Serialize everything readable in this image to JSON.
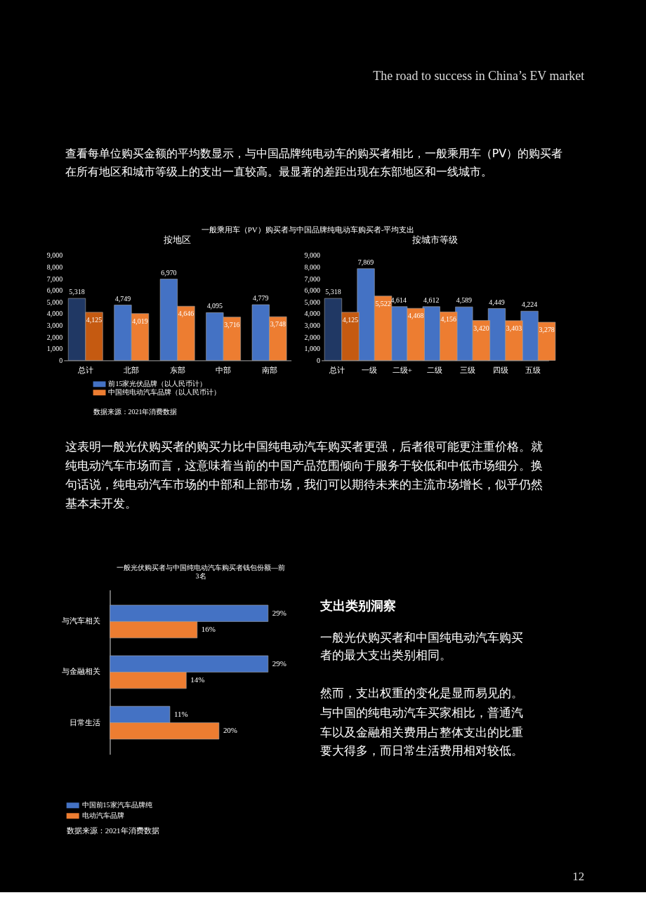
{
  "chart_data": [
    {
      "type": "bar",
      "title": "按地区",
      "categories": [
        "总计",
        "北部",
        "东部",
        "中部",
        "南部"
      ],
      "series": [
        {
          "name": "前15家光伏品牌（以人民币计）",
          "color": "#4472c4",
          "colors": [
            "#203864",
            "#4472c4",
            "#4472c4",
            "#4472c4",
            "#4472c4"
          ],
          "values": [
            5318,
            4749,
            6970,
            4095,
            4779
          ],
          "value_labels": [
            "5,318",
            "4,749",
            "6,970",
            "4,095",
            "4,779"
          ]
        },
        {
          "name": "中国纯电动汽车品牌（以人民币计）",
          "color": "#ed7d31",
          "colors": [
            "#c55a11",
            "#ed7d31",
            "#ed7d31",
            "#ed7d31",
            "#ed7d31"
          ],
          "values": [
            4125,
            4019,
            4646,
            3716,
            3748
          ],
          "value_labels": [
            "4,125",
            "4,019",
            "4,646",
            "3,716",
            "3,748"
          ]
        }
      ],
      "ylim": [
        0,
        9000
      ],
      "yticks": [
        0,
        {
          "value": 1000,
          "label": "1,000"
        },
        {
          "value": 2000,
          "label": "2,000"
        },
        {
          "value": 3000,
          "label": "3,000"
        },
        {
          "value": 4000,
          "label": "4,000"
        },
        {
          "value": 5000,
          "label": "5,000"
        },
        {
          "value": 6000,
          "label": "6,000"
        },
        {
          "value": 7000,
          "label": "7,000"
        },
        {
          "value": 8000,
          "label": "8,000"
        },
        {
          "value": 9000,
          "label": "9,000"
        }
      ],
      "legend": "bottom",
      "annotations": [
        "The road to success in China’s EV market",
        "查看每单位购买金额的平均数显示，与中国品牌纯电动车的购买者相比，一般乘用车（PV）的购买者",
        "在所有地区和城市等级上的支出一直较高。最显著的差距出现在东部地区和一线城市。",
        "一般乘用车（PV）购买者与中国品牌纯电动车购买者-平均支出"
      ]
    },
    {
      "type": "bar",
      "title": "按城市等级",
      "categories": [
        "总计",
        "一级",
        "二级+",
        "二级",
        "三级",
        "四级",
        "五级"
      ],
      "series": [
        {
          "colors": [
            "#203864",
            "#4472c4",
            "#4472c4",
            "#4472c4",
            "#4472c4",
            "#4472c4",
            "#4472c4"
          ],
          "values": [
            5318,
            7869,
            4614,
            4612,
            4589,
            4449,
            4224
          ],
          "value_labels": [
            "5,318",
            "7,869",
            "4,614",
            "4,612",
            "4,589",
            "4,449",
            "4,224"
          ]
        },
        {
          "colors": [
            "#c55a11",
            "#ed7d31",
            "#ed7d31",
            "#ed7d31",
            "#ed7d31",
            "#ed7d31",
            "#ed7d31"
          ],
          "values": [
            4125,
            5522,
            4468,
            4156,
            3420,
            3403,
            3278
          ],
          "value_labels": [
            "4,125",
            "5,522",
            "4,468",
            "4,156",
            "3,420",
            "3,403",
            "3,278"
          ]
        }
      ],
      "ylim": [
        0,
        9000
      ],
      "yticks": [
        0,
        {
          "value": 1000,
          "label": "1,000"
        },
        {
          "value": 2000,
          "label": "2,000"
        },
        {
          "value": 3000,
          "label": "3,000"
        },
        {
          "value": 4000,
          "label": "4,000"
        },
        {
          "value": 5000,
          "label": "5,000"
        },
        {
          "value": 6000,
          "label": "6,000"
        },
        {
          "value": 7000,
          "label": "7,000"
        },
        {
          "value": 8000,
          "label": "8,000"
        },
        {
          "value": 9000,
          "label": "9,000"
        }
      ],
      "annotations": [
        "数据来源：2021年消费数据",
        "这表明一般光伏购买者的购买力比中国纯电动汽车购买者更强，后者很可能更注重价格。就",
        "纯电动汽车市场而言，这意味着当前的中国产品范围倾向于服务于较低和中低市场细分。换",
        "句话说，纯电动汽车市场的中部和上部市场，我们可以期待未来的主流市场增长，似乎仍然",
        "基本未开发。"
      ]
    },
    {
      "type": "bar",
      "orientation": "horizontal",
      "title": "一般光伏购买者与中国纯电动汽车购买者钱包份额—前3名",
      "categories": [
        "与汽车相关",
        "与金融相关",
        "日常生活"
      ],
      "series": [
        {
          "name": "中国前15家汽车品牌纯",
          "color": "#4472c4",
          "values": [
            29,
            29,
            11
          ],
          "value_labels": [
            "29%",
            "29%",
            "11%"
          ]
        },
        {
          "name": "电动汽车品牌",
          "color": "#ed7d31",
          "values": [
            16,
            14,
            20
          ],
          "value_labels": [
            "16%",
            "14%",
            "20%"
          ]
        }
      ],
      "tick_labels": "y",
      "legend": "bottom",
      "annotations": [
        "支出类别洞察",
        "一般光伏购买者和中国纯电动汽车购买",
        "者的最大支出类别相同。",
        "然而，支出权重的变化是显而易见的。",
        "与中国的纯电动汽车买家相比，普通汽",
        "车以及金融相关费用占整体支出的比重",
        "要大得多，而日常生活费用相对较低。",
        "数据来源：2021年消费数据",
        "12"
      ]
    }
  ]
}
